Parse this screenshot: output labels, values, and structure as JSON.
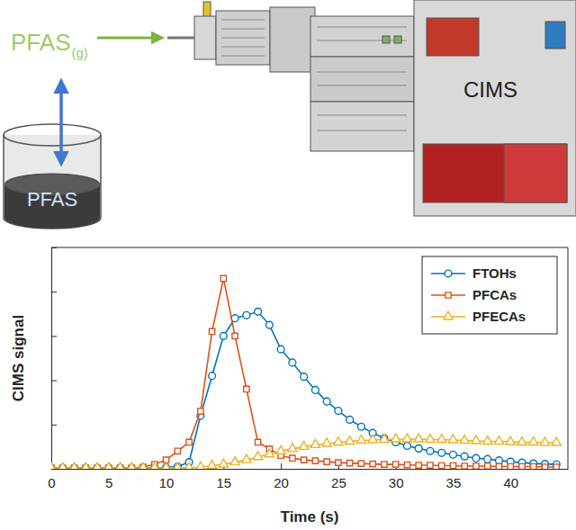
{
  "diagram": {
    "gas_label": "PFAS",
    "gas_phase": "(g)",
    "liquid_label": "PFAS",
    "instrument_label": "CIMS"
  },
  "chart_data": {
    "type": "line",
    "x_label": "Time (s)",
    "y_label": "CIMS signal",
    "x": [
      0,
      1,
      2,
      3,
      4,
      5,
      6,
      7,
      8,
      9,
      10,
      11,
      12,
      13,
      14,
      15,
      16,
      17,
      18,
      19,
      20,
      21,
      22,
      23,
      24,
      25,
      26,
      27,
      28,
      29,
      30,
      31,
      32,
      33,
      34,
      35,
      36,
      37,
      38,
      39,
      40,
      41,
      42,
      43,
      44
    ],
    "xlim": [
      0,
      45
    ],
    "xticks": [
      0,
      5,
      10,
      15,
      20,
      25,
      30,
      35,
      40
    ],
    "ylim": [
      0,
      5
    ],
    "yticks": [
      0,
      1,
      2,
      3,
      4,
      5
    ],
    "tick_labels": "x",
    "grid": false,
    "legend": "upper right",
    "series": [
      {
        "name": "FTOHs",
        "color": "#0072bd",
        "marker": "circle",
        "line_style": "solid",
        "values": [
          0.02,
          0.02,
          0.02,
          0.02,
          0.02,
          0.02,
          0.02,
          0.02,
          0.02,
          0.02,
          0.03,
          0.05,
          0.15,
          1.2,
          2.1,
          3.0,
          3.4,
          3.47,
          3.55,
          3.25,
          2.7,
          2.4,
          2.08,
          1.78,
          1.52,
          1.31,
          1.11,
          0.95,
          0.81,
          0.69,
          0.6,
          0.52,
          0.46,
          0.4,
          0.36,
          0.32,
          0.28,
          0.24,
          0.22,
          0.19,
          0.16,
          0.14,
          0.12,
          0.11,
          0.1
        ]
      },
      {
        "name": "PFCAs",
        "color": "#d95319",
        "marker": "square",
        "line_style": "solid",
        "values": [
          0.02,
          0.02,
          0.02,
          0.02,
          0.02,
          0.02,
          0.02,
          0.02,
          0.04,
          0.1,
          0.2,
          0.4,
          0.6,
          1.3,
          3.1,
          4.3,
          3.0,
          1.8,
          0.6,
          0.45,
          0.3,
          0.24,
          0.2,
          0.18,
          0.16,
          0.14,
          0.13,
          0.12,
          0.11,
          0.1,
          0.1,
          0.09,
          0.08,
          0.08,
          0.07,
          0.07,
          0.06,
          0.06,
          0.06,
          0.05,
          0.05,
          0.05,
          0.05,
          0.04,
          0.04
        ]
      },
      {
        "name": "PFECAs",
        "color": "#edb120",
        "marker": "triangle",
        "line_style": "solid",
        "values": [
          0.02,
          0.02,
          0.02,
          0.02,
          0.02,
          0.02,
          0.02,
          0.02,
          0.02,
          0.02,
          0.02,
          0.02,
          0.02,
          0.04,
          0.07,
          0.1,
          0.15,
          0.2,
          0.27,
          0.33,
          0.4,
          0.45,
          0.5,
          0.54,
          0.57,
          0.6,
          0.62,
          0.64,
          0.65,
          0.66,
          0.67,
          0.67,
          0.67,
          0.66,
          0.66,
          0.65,
          0.64,
          0.63,
          0.62,
          0.62,
          0.61,
          0.6,
          0.6,
          0.59,
          0.59
        ]
      }
    ]
  }
}
